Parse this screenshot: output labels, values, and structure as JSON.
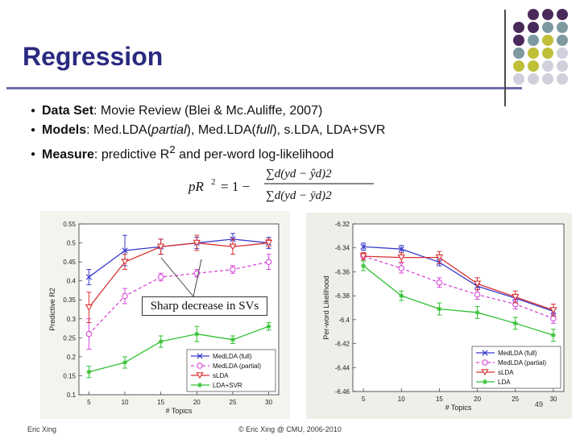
{
  "slide": {
    "title": "Regression",
    "bullets": [
      {
        "bold": "Data Set",
        "rest_parts": [
          {
            "t": ": Movie Review (Blei & Mc.Auliffe, 2007)",
            "i": false
          }
        ]
      },
      {
        "bold": "Models",
        "rest_parts": [
          {
            "t": ": Med.LDA(",
            "i": false
          },
          {
            "t": "partial",
            "i": true
          },
          {
            "t": "), Med.LDA(",
            "i": false
          },
          {
            "t": "full",
            "i": true
          },
          {
            "t": "), s.LDA, LDA+SVR",
            "i": false
          }
        ]
      },
      {
        "bold": "Measure",
        "rest_parts": [
          {
            "t": ": predictive R",
            "i": false
          },
          {
            "t": "2",
            "sup": true
          },
          {
            "t": " and per-word log-likelihood",
            "i": false
          }
        ]
      }
    ],
    "formula": {
      "lhs": "pR",
      "sup": "2",
      "eq": "= 1 −",
      "num": "∑d(yd − ŷd)2",
      "den": "∑d(yd − ȳd)2"
    },
    "callout": "Sharp decrease in SVs",
    "footer_left": "Eric Xing",
    "footer_center": "© Eric Xing @ CMU, 2006-2010",
    "page_number": "49"
  },
  "colors": {
    "title": "#2a2a80",
    "medlda_full": "#3a3acc",
    "medlda_partial": "#d846d8",
    "slda": "#d83030",
    "lda_svr": "#30c030",
    "dots": [
      "#4a2a5a",
      "#7d9aa0",
      "#bfbf3a",
      "#d0d0dc"
    ]
  },
  "chart_data": [
    {
      "type": "line",
      "xlabel": "# Topics",
      "ylabel": "Predictive R2",
      "x": [
        5,
        10,
        15,
        20,
        25,
        30
      ],
      "xticks": [
        "5",
        "10",
        "15",
        "20",
        "25",
        "30"
      ],
      "ylim": [
        0.1,
        0.55
      ],
      "yticks": [
        "0.1",
        "0.15",
        "0.2",
        "0.25",
        "0.3",
        "0.35",
        "0.4",
        "0.45",
        "0.5",
        "0.55"
      ],
      "legend_position": "bottom-right",
      "series": [
        {
          "name": "MedLDA (full)",
          "key": "medlda_full",
          "marker": "x",
          "dash": false,
          "values": [
            0.41,
            0.48,
            0.49,
            0.5,
            0.51,
            0.5
          ],
          "err": [
            0.02,
            0.04,
            0.02,
            0.015,
            0.015,
            0.015
          ]
        },
        {
          "name": "MedLDA (partial)",
          "key": "medlda_partial",
          "marker": "o",
          "dash": true,
          "values": [
            0.26,
            0.36,
            0.41,
            0.42,
            0.43,
            0.45
          ],
          "err": [
            0.04,
            0.02,
            0.01,
            0.01,
            0.01,
            0.02
          ]
        },
        {
          "name": "sLDA",
          "key": "slda",
          "marker": "v",
          "dash": false,
          "values": [
            0.33,
            0.45,
            0.49,
            0.5,
            0.49,
            0.5
          ],
          "err": [
            0.04,
            0.02,
            0.02,
            0.02,
            0.02,
            0.01
          ]
        },
        {
          "name": "LDA+SVR",
          "key": "lda_svr",
          "marker": "*",
          "dash": false,
          "values": [
            0.16,
            0.185,
            0.24,
            0.26,
            0.245,
            0.28
          ],
          "err": [
            0.015,
            0.015,
            0.015,
            0.02,
            0.01,
            0.01
          ]
        }
      ]
    },
    {
      "type": "line",
      "xlabel": "# Topics",
      "ylabel": "Per-word Likelihood",
      "x": [
        5,
        10,
        15,
        20,
        25,
        30
      ],
      "xticks": [
        "5",
        "10",
        "15",
        "20",
        "25",
        "30"
      ],
      "ylim": [
        -6.46,
        -6.32
      ],
      "yticks": [
        "-6.32",
        "-6.34",
        "-6.36",
        "-6.38",
        "-6.4",
        "-6.42",
        "-6.44",
        "-6.46"
      ],
      "legend_position": "bottom-right",
      "series": [
        {
          "name": "MedLDA (full)",
          "key": "medlda_full",
          "marker": "x",
          "dash": false,
          "values": [
            -6.339,
            -6.341,
            -6.352,
            -6.372,
            -6.382,
            -6.393
          ],
          "err": [
            0.003,
            0.003,
            0.003,
            0.003,
            0.003,
            0.003
          ]
        },
        {
          "name": "MedLDA (partial)",
          "key": "medlda_partial",
          "marker": "o",
          "dash": true,
          "values": [
            -6.347,
            -6.357,
            -6.369,
            -6.379,
            -6.387,
            -6.399
          ],
          "err": [
            0.003,
            0.004,
            0.004,
            0.004,
            0.004,
            0.004
          ]
        },
        {
          "name": "sLDA",
          "key": "slda",
          "marker": "v",
          "dash": false,
          "values": [
            -6.347,
            -6.348,
            -6.348,
            -6.37,
            -6.381,
            -6.392
          ],
          "err": [
            0.003,
            0.004,
            0.005,
            0.005,
            0.005,
            0.005
          ]
        },
        {
          "name": "LDA",
          "key": "lda_svr",
          "marker": "*",
          "dash": false,
          "values": [
            -6.355,
            -6.38,
            -6.391,
            -6.394,
            -6.403,
            -6.413
          ],
          "err": [
            0.004,
            0.004,
            0.005,
            0.005,
            0.005,
            0.005
          ]
        }
      ]
    }
  ]
}
